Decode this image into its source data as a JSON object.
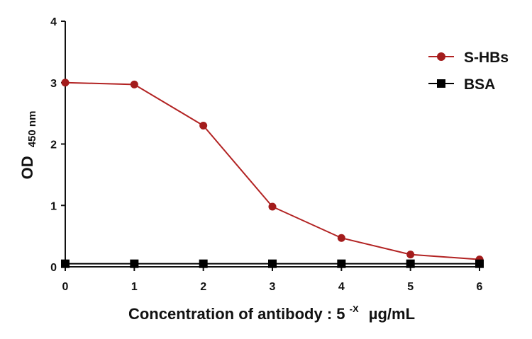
{
  "chart_data": {
    "type": "line",
    "title": "",
    "xlabel": {
      "prefix": "Concentration of antibody : 5",
      "superscript": "-X",
      "unit": "µg/mL"
    },
    "ylabel": {
      "main": "OD",
      "subscript": "450 nm"
    },
    "x_ticks": [
      "0",
      "1",
      "2",
      "3",
      "4",
      "5",
      "6"
    ],
    "y_ticks": [
      "0",
      "1",
      "2",
      "3",
      "4"
    ],
    "xlim": [
      0,
      6
    ],
    "ylim": [
      0,
      4
    ],
    "legend_position": "top-right",
    "series": [
      {
        "name": "S-HBs",
        "color": "#b22222",
        "marker": "circle",
        "x": [
          0,
          1,
          2,
          3,
          4,
          5,
          6
        ],
        "y": [
          3.0,
          2.97,
          2.3,
          0.98,
          0.47,
          0.2,
          0.12
        ]
      },
      {
        "name": "BSA",
        "color": "#000000",
        "marker": "square",
        "x": [
          0,
          1,
          2,
          3,
          4,
          5,
          6
        ],
        "y": [
          0.05,
          0.05,
          0.05,
          0.05,
          0.05,
          0.05,
          0.05
        ]
      }
    ]
  }
}
